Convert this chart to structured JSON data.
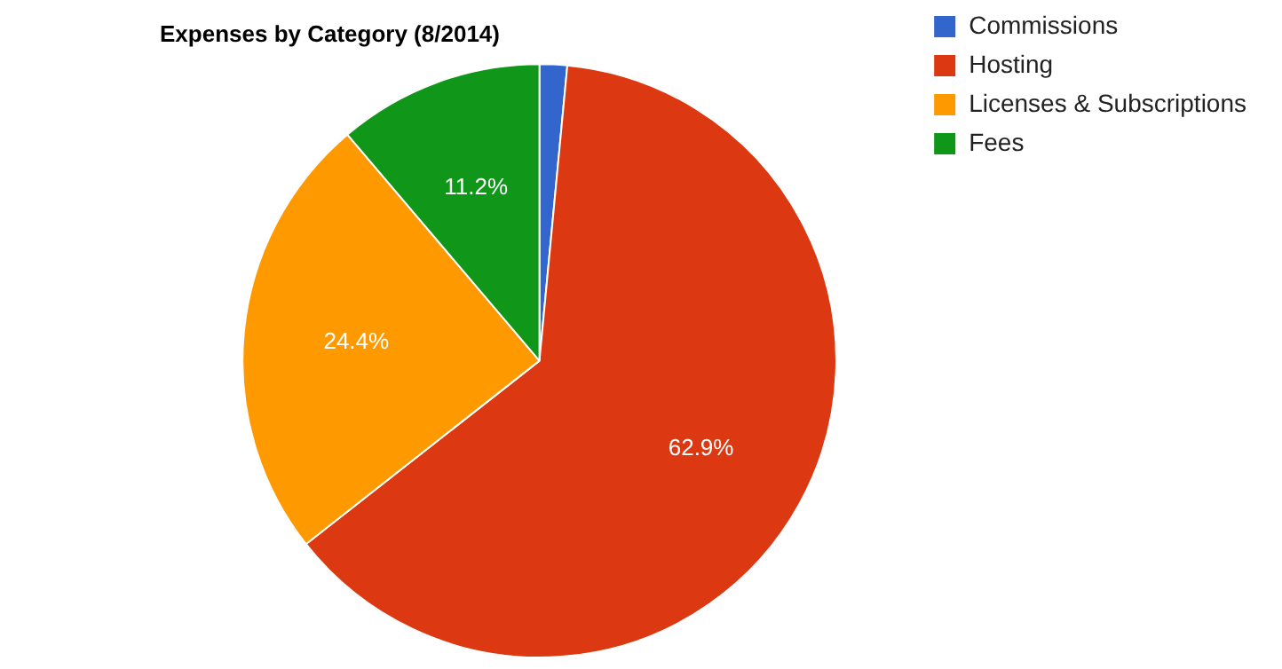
{
  "chart_data": {
    "type": "pie",
    "title": "Expenses by Category (8/2014)",
    "categories": [
      "Commissions",
      "Hosting",
      "Licenses & Subscriptions",
      "Fees"
    ],
    "values": [
      1.5,
      62.9,
      24.4,
      11.2
    ],
    "colors": [
      "#3366cc",
      "#dc3912",
      "#ff9900",
      "#109618"
    ],
    "value_labels": [
      null,
      "62.9%",
      "24.4%",
      "11.2%"
    ],
    "legend": "top right"
  }
}
